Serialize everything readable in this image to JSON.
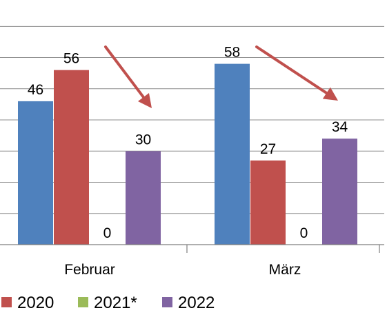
{
  "chart_data": {
    "type": "bar",
    "categories": [
      "Februar",
      "März"
    ],
    "series": [
      {
        "name": "",
        "values": [
          46,
          58
        ],
        "color": "#4f81bd"
      },
      {
        "name": "2020",
        "values": [
          56,
          27
        ],
        "color": "#c0504d"
      },
      {
        "name": "2021*",
        "values": [
          0,
          0
        ],
        "color": "#9bbb59"
      },
      {
        "name": "2022",
        "values": [
          30,
          34
        ],
        "color": "#8064a2"
      }
    ],
    "title": "",
    "xlabel": "",
    "ylabel": "",
    "ylim": [
      0,
      70
    ],
    "grid": true,
    "legend_position": "bottom",
    "annotations": [
      "arrow-decrease-februar",
      "arrow-decrease-maerz"
    ],
    "annotation_color": "#c0504d"
  }
}
